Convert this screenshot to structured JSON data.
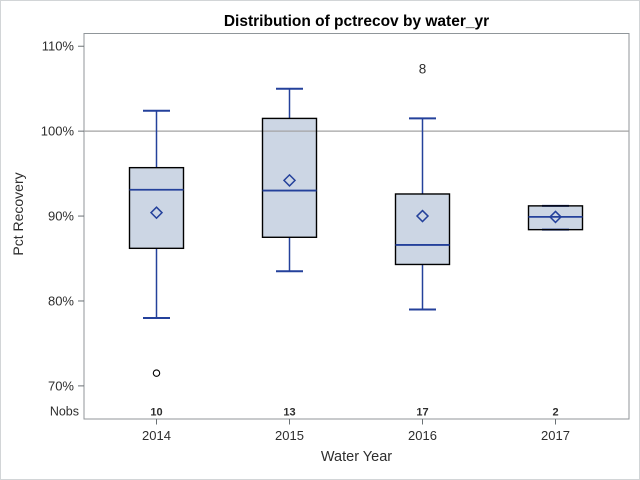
{
  "figure": {
    "title": "Distribution of pctrecov by water_yr",
    "x_axis_label": "Water Year",
    "y_axis_label": "Pct Recovery",
    "nobs_row_label": "Nobs"
  },
  "chart_data": {
    "type": "box",
    "title": "Distribution of pctrecov by water_yr",
    "xlabel": "Water Year",
    "ylabel": "Pct Recovery",
    "categories": [
      "2014",
      "2015",
      "2016",
      "2017"
    ],
    "y_ticks": [
      70,
      80,
      90,
      100,
      110
    ],
    "y_tick_labels": [
      "70%",
      "80%",
      "90%",
      "100%",
      "110%"
    ],
    "ylim": [
      66.1,
      111.5
    ],
    "reference_line": 100,
    "grid": "horizontal reference line at 100% only",
    "legend": "none",
    "nobs_label": "Nobs",
    "nobs": [
      "10",
      "13",
      "17",
      "2"
    ],
    "series": [
      {
        "category": "2014",
        "whisker_low": 78.0,
        "q1": 86.2,
        "median": 93.1,
        "q3": 95.7,
        "whisker_high": 102.4,
        "mean": 90.4,
        "outliers": [
          71.5
        ]
      },
      {
        "category": "2015",
        "whisker_low": 83.5,
        "q1": 87.5,
        "median": 93.0,
        "q3": 101.5,
        "whisker_high": 105.0,
        "mean": 94.2,
        "outliers": []
      },
      {
        "category": "2016",
        "whisker_low": 79.0,
        "q1": 84.3,
        "median": 86.6,
        "q3": 92.6,
        "whisker_high": 101.5,
        "mean": 90.0,
        "outliers": []
      },
      {
        "category": "2017",
        "whisker_low": 88.4,
        "q1": 88.4,
        "median": 89.9,
        "q3": 91.2,
        "whisker_high": 91.2,
        "mean": 89.9,
        "outliers": []
      }
    ],
    "annotations": [
      {
        "category": "2016",
        "text": "8",
        "value": 107.3
      }
    ],
    "colors": {
      "box_fill": "#ccd6e4",
      "box_stroke": "#000000",
      "line_blue": "#24419b",
      "outlier_stroke": "#000000",
      "reference_line": "#a3a3a3",
      "plot_frame": "#90969a",
      "outer_border": "#d2d5d7",
      "tick_mark": "#6a7074",
      "text": "#2e2e2e",
      "title_text": "#000000",
      "background": "#ffffff"
    }
  }
}
